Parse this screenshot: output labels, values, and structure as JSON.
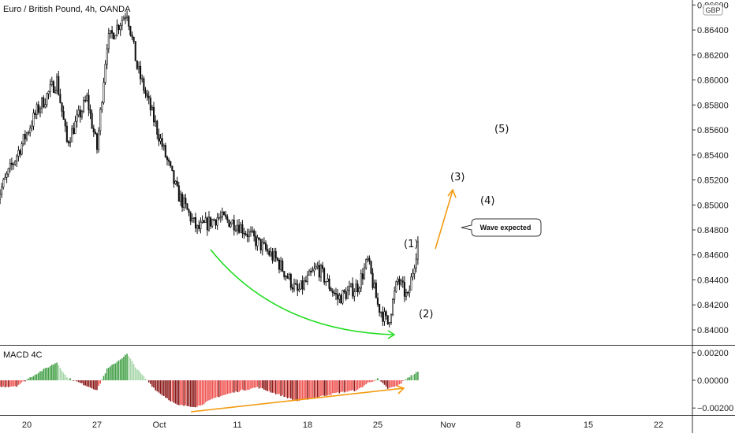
{
  "header": {
    "title": "Euro / British Pound, 4h, OANDA",
    "currency_badge": "GBP"
  },
  "indicator": {
    "name": "MACD 4C"
  },
  "annotations": {
    "callout": "Wave expected",
    "waves": [
      "(1)",
      "(2)",
      "(3)",
      "(4)",
      "(5)"
    ]
  },
  "colors": {
    "candle": "#111111",
    "macd_positive": "#4caf50",
    "macd_negative": "#c62828",
    "curve": "#22dd22",
    "projection": "#f39c12"
  },
  "chart_data": [
    {
      "type": "candlestick",
      "title": "Euro / British Pound, 4h, OANDA",
      "ylim": [
        0.8388,
        0.8664
      ],
      "y_ticks": [
        "0.86600",
        "0.86400",
        "0.86200",
        "0.86000",
        "0.85800",
        "0.85600",
        "0.85400",
        "0.85200",
        "0.85000",
        "0.84800",
        "0.84600",
        "0.84400",
        "0.84200",
        "0.84000"
      ],
      "x_ticks": [
        "20",
        "27",
        "Oct",
        "11",
        "18",
        "25",
        "Nov",
        "8",
        "15",
        "22"
      ],
      "close_path": [
        {
          "x": "2021-09-17",
          "y": 0.8505
        },
        {
          "x": "2021-09-19",
          "y": 0.854
        },
        {
          "x": "2021-09-21",
          "y": 0.8575
        },
        {
          "x": "2021-09-23",
          "y": 0.86
        },
        {
          "x": "2021-09-24",
          "y": 0.855
        },
        {
          "x": "2021-09-26",
          "y": 0.8585
        },
        {
          "x": "2021-09-27",
          "y": 0.8545
        },
        {
          "x": "2021-09-28",
          "y": 0.863
        },
        {
          "x": "2021-09-30",
          "y": 0.8655
        },
        {
          "x": "2021-10-01",
          "y": 0.861
        },
        {
          "x": "2021-10-03",
          "y": 0.856
        },
        {
          "x": "2021-10-05",
          "y": 0.851
        },
        {
          "x": "2021-10-07",
          "y": 0.848
        },
        {
          "x": "2021-10-09",
          "y": 0.849
        },
        {
          "x": "2021-10-11",
          "y": 0.8485
        },
        {
          "x": "2021-10-13",
          "y": 0.847
        },
        {
          "x": "2021-10-15",
          "y": 0.8455
        },
        {
          "x": "2021-10-17",
          "y": 0.843
        },
        {
          "x": "2021-10-19",
          "y": 0.845
        },
        {
          "x": "2021-10-21",
          "y": 0.8425
        },
        {
          "x": "2021-10-23",
          "y": 0.8435
        },
        {
          "x": "2021-10-24",
          "y": 0.8455
        },
        {
          "x": "2021-10-25",
          "y": 0.842
        },
        {
          "x": "2021-10-26",
          "y": 0.8405
        },
        {
          "x": "2021-10-27",
          "y": 0.844
        },
        {
          "x": "2021-10-28",
          "y": 0.8425
        },
        {
          "x": "2021-10-29",
          "y": 0.847
        }
      ]
    },
    {
      "type": "bar",
      "title": "MACD 4C",
      "ylim": [
        -0.0025,
        0.0025
      ],
      "y_ticks": [
        "0.00200",
        "0.00000",
        "−0.00200"
      ],
      "histogram_path": [
        {
          "x": "2021-09-17",
          "y": -0.0005
        },
        {
          "x": "2021-09-19",
          "y": -0.0004
        },
        {
          "x": "2021-09-21",
          "y": 0.0005
        },
        {
          "x": "2021-09-23",
          "y": 0.0013
        },
        {
          "x": "2021-09-24",
          "y": 0.0002
        },
        {
          "x": "2021-09-26",
          "y": -0.0004
        },
        {
          "x": "2021-09-27",
          "y": -0.0007
        },
        {
          "x": "2021-09-28",
          "y": 0.0008
        },
        {
          "x": "2021-09-30",
          "y": 0.0019
        },
        {
          "x": "2021-10-01",
          "y": 0.0008
        },
        {
          "x": "2021-10-03",
          "y": -0.0008
        },
        {
          "x": "2021-10-05",
          "y": -0.0018
        },
        {
          "x": "2021-10-07",
          "y": -0.0019
        },
        {
          "x": "2021-10-09",
          "y": -0.0012
        },
        {
          "x": "2021-10-11",
          "y": -0.0008
        },
        {
          "x": "2021-10-13",
          "y": -0.0005
        },
        {
          "x": "2021-10-15",
          "y": -0.001
        },
        {
          "x": "2021-10-17",
          "y": -0.0015
        },
        {
          "x": "2021-10-19",
          "y": -0.0012
        },
        {
          "x": "2021-10-21",
          "y": -0.0009
        },
        {
          "x": "2021-10-23",
          "y": -0.0007
        },
        {
          "x": "2021-10-24",
          "y": -0.0002
        },
        {
          "x": "2021-10-25",
          "y": 0.0001
        },
        {
          "x": "2021-10-26",
          "y": -0.0006
        },
        {
          "x": "2021-10-27",
          "y": -0.0004
        },
        {
          "x": "2021-10-28",
          "y": 0.0002
        },
        {
          "x": "2021-10-29",
          "y": 0.0006
        }
      ]
    }
  ]
}
